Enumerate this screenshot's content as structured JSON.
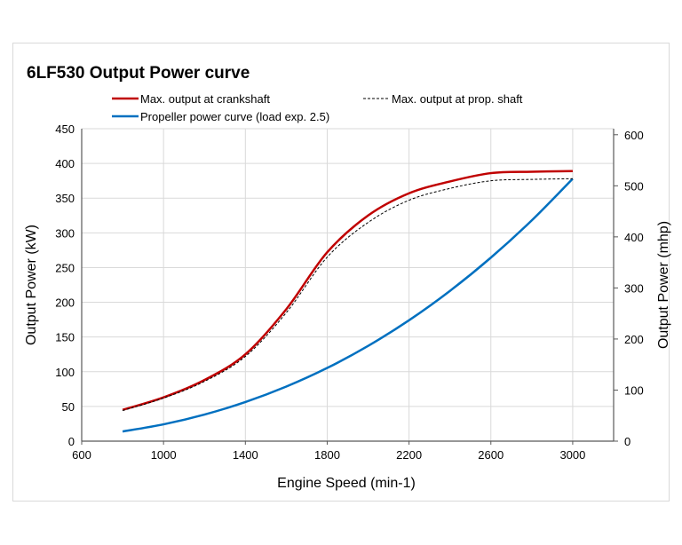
{
  "chart_data": {
    "type": "line",
    "title": "6LF530 Output Power curve",
    "xlabel": "Engine Speed (min-1)",
    "ylabel": "Output Power (kW)",
    "y2label": "Output Power (mhp)",
    "xlim": [
      600,
      3200
    ],
    "ylim": [
      0,
      450
    ],
    "y2lim": [
      0,
      611.8
    ],
    "xticks": [
      600,
      1000,
      1400,
      1800,
      2200,
      2600,
      3000
    ],
    "yticks": [
      0,
      50,
      100,
      150,
      200,
      250,
      300,
      350,
      400,
      450
    ],
    "y2ticks": [
      0,
      100,
      200,
      300,
      400,
      500,
      600
    ],
    "grid": true,
    "legend_position": "top",
    "x": [
      800,
      1000,
      1200,
      1400,
      1600,
      1800,
      2000,
      2200,
      2400,
      2600,
      2800,
      3000
    ],
    "series": [
      {
        "name": "Max. output at crankshaft",
        "color": "#c00000",
        "style": "solid",
        "values": [
          45,
          63,
          88,
          125,
          190,
          272,
          325,
          357,
          374,
          386,
          388,
          389
        ]
      },
      {
        "name": "Max. output at prop. shaft",
        "color": "#000000",
        "style": "dashed",
        "values": [
          44,
          62,
          86,
          122,
          185,
          265,
          315,
          347,
          364,
          375,
          377,
          378
        ]
      },
      {
        "name": "Propeller power curve (load exp. 2.5)",
        "color": "#0070c0",
        "style": "solid",
        "values": [
          13.9,
          24.2,
          38.3,
          56.3,
          78.6,
          105.4,
          137.2,
          174.1,
          216.4,
          264.3,
          318,
          378
        ]
      }
    ]
  }
}
